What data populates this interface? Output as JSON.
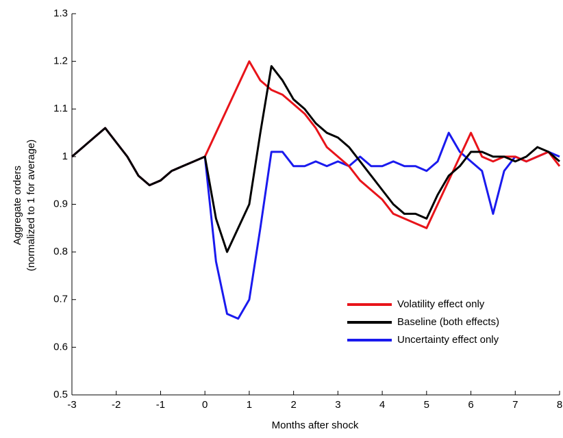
{
  "chart_data": {
    "type": "line",
    "xlabel": "Months after shock",
    "ylabel": [
      "Aggregate orders",
      "(normalized to 1 for average)"
    ],
    "x": [
      -3,
      -2.75,
      -2.5,
      -2.25,
      -2,
      -1.75,
      -1.5,
      -1.25,
      -1,
      -0.75,
      -0.5,
      -0.25,
      0,
      0.25,
      0.5,
      0.75,
      1,
      1.25,
      1.5,
      1.75,
      2,
      2.25,
      2.5,
      2.75,
      3,
      3.25,
      3.5,
      3.75,
      4,
      4.25,
      4.5,
      4.75,
      5,
      5.25,
      5.5,
      5.75,
      6,
      6.25,
      6.5,
      6.75,
      7,
      7.25,
      7.5,
      7.75,
      8
    ],
    "series": [
      {
        "name": "Volatility effect only",
        "color": "#e8141a",
        "values": [
          1.0,
          1.02,
          1.04,
          1.06,
          1.03,
          1.0,
          0.96,
          0.94,
          0.95,
          0.97,
          0.98,
          0.99,
          1.0,
          1.05,
          1.1,
          1.15,
          1.2,
          1.16,
          1.14,
          1.13,
          1.11,
          1.09,
          1.06,
          1.02,
          1.0,
          0.98,
          0.95,
          0.93,
          0.91,
          0.88,
          0.87,
          0.86,
          0.85,
          0.9,
          0.95,
          1.0,
          1.05,
          1.0,
          0.99,
          1.0,
          1.0,
          0.99,
          1.0,
          1.01,
          0.98
        ]
      },
      {
        "name": "Baseline (both effects)",
        "color": "#000000",
        "values": [
          1.0,
          1.02,
          1.04,
          1.06,
          1.03,
          1.0,
          0.96,
          0.94,
          0.95,
          0.97,
          0.98,
          0.99,
          1.0,
          0.87,
          0.8,
          0.85,
          0.9,
          1.05,
          1.19,
          1.16,
          1.12,
          1.1,
          1.07,
          1.05,
          1.04,
          1.02,
          0.99,
          0.96,
          0.93,
          0.9,
          0.88,
          0.88,
          0.87,
          0.92,
          0.96,
          0.98,
          1.01,
          1.01,
          1.0,
          1.0,
          0.99,
          1.0,
          1.02,
          1.01,
          0.99
        ]
      },
      {
        "name": "Uncertainty effect only",
        "color": "#1a1aee",
        "values": [
          1.0,
          1.02,
          1.04,
          1.06,
          1.03,
          1.0,
          0.96,
          0.94,
          0.95,
          0.97,
          0.98,
          0.99,
          1.0,
          0.78,
          0.67,
          0.66,
          0.7,
          0.85,
          1.01,
          1.01,
          0.98,
          0.98,
          0.99,
          0.98,
          0.99,
          0.98,
          1.0,
          0.98,
          0.98,
          0.99,
          0.98,
          0.98,
          0.97,
          0.99,
          1.05,
          1.01,
          0.99,
          0.97,
          0.88,
          0.97,
          1.0,
          0.99,
          1.0,
          1.01,
          1.0
        ]
      }
    ],
    "xlim": [
      -3,
      8
    ],
    "xticks": [
      -3,
      -2,
      -1,
      0,
      1,
      2,
      3,
      4,
      5,
      6,
      7,
      8
    ],
    "ylim": [
      0.5,
      1.3
    ],
    "yticks": [
      0.5,
      0.6,
      0.7,
      0.8,
      0.9,
      1,
      1.1,
      1.2,
      1.3
    ],
    "grid": false,
    "legend": "lower right"
  }
}
